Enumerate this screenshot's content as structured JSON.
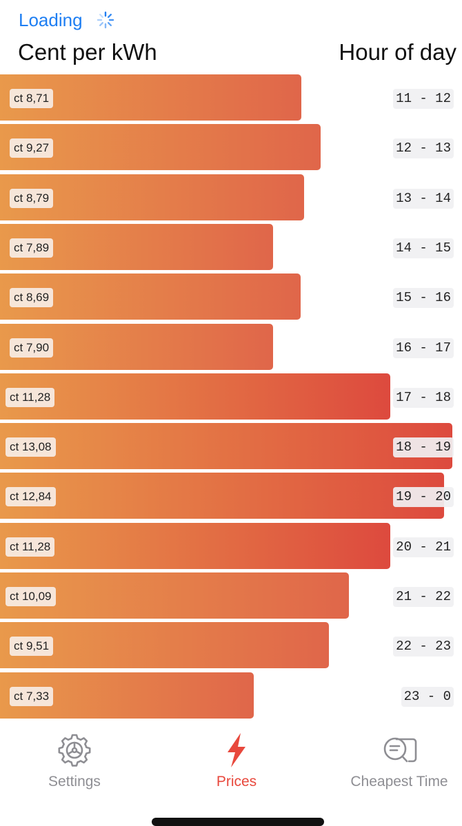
{
  "status": {
    "loading_label": "Loading"
  },
  "headers": {
    "left": "Cent per kWh",
    "right": "Hour of day"
  },
  "chart_data": {
    "type": "bar",
    "orientation": "horizontal",
    "xlabel": "Cent per kWh",
    "ylabel": "Hour of day",
    "categories": [
      "11 - 12",
      "12 - 13",
      "13 - 14",
      "14 - 15",
      "15 - 16",
      "16 - 17",
      "17 - 18",
      "18 - 19",
      "19 - 20",
      "20 - 21",
      "21 - 22",
      "22 - 23",
      "23 - 0"
    ],
    "values": [
      8.71,
      9.27,
      8.79,
      7.89,
      8.69,
      7.9,
      11.28,
      13.08,
      12.84,
      11.28,
      10.09,
      9.51,
      7.33
    ],
    "value_labels": [
      "ct 8,71",
      "ct 9,27",
      "ct 8,79",
      "ct 7,89",
      "ct 8,69",
      "ct 7,90",
      "ct 11,28",
      "ct 13,08",
      "ct 12,84",
      "ct 11,28",
      "ct 10,09",
      "ct 9,51",
      "ct 7,33"
    ],
    "colors": {
      "gradient_start": "#e99a4b",
      "gradient_end_low": "#e0664a",
      "gradient_end_high": "#dd4a3e"
    }
  },
  "tabbar": {
    "items": [
      {
        "label": "Settings",
        "icon": "gear-icon",
        "active": false
      },
      {
        "label": "Prices",
        "icon": "lightning-icon",
        "active": true
      },
      {
        "label": "Cheapest Time",
        "icon": "search-list-icon",
        "active": false
      }
    ],
    "active_color": "#e8483c",
    "inactive_color": "#8e8e93"
  }
}
